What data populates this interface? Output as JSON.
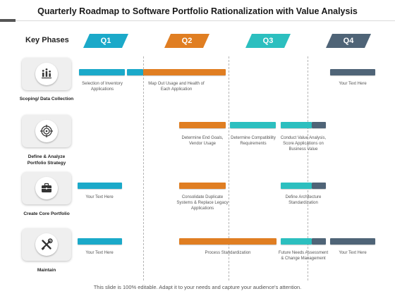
{
  "title": "Quarterly Roadmap to Software Portfolio Rationalization with Value Analysis",
  "key_phases_label": "Key Phases",
  "quarters": [
    "Q1",
    "Q2",
    "Q3",
    "Q4"
  ],
  "colors": {
    "q1": "#1ba9c9",
    "q2": "#e07e22",
    "q3": "#2cbfbf",
    "q4": "#4f6477"
  },
  "rows": [
    {
      "label": "Scoping/ Data Collection",
      "icon": "people-bars-icon",
      "captions": [
        "Selection of Inventory Applications",
        "Map Out Usage and Health of Each Application",
        "Your Text Here"
      ]
    },
    {
      "label": "Define & Analyze Portfolio Strategy",
      "icon": "target-icon",
      "captions": [
        "Determine End Goals, Vendor Usage",
        "Determine Compatibility Requirements",
        "Conduct Value Analysis, Score Applications on Business Value"
      ]
    },
    {
      "label": "Create Core Portfolio",
      "icon": "briefcase-icon",
      "captions": [
        "Your Text Here",
        "Consolidate Duplicate Systems & Replace Legacy Applications",
        "Define Architecture Standardization"
      ]
    },
    {
      "label": "Maintain",
      "icon": "tools-icon",
      "captions": [
        "Your Text Here",
        "Process Standardization",
        "Future Needs Assessment & Change Management",
        "Your Text Here"
      ]
    }
  ],
  "footer": "This slide is 100% editable. Adapt it to your needs and capture your audience's attention."
}
